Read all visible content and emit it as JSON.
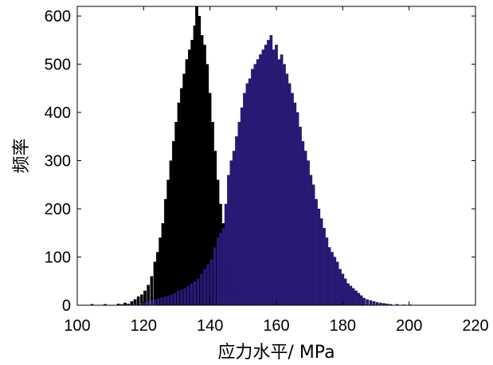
{
  "chart_data": {
    "type": "bar",
    "subtype": "overlapping-histogram",
    "title": "",
    "xlabel": "应力水平/ MPa",
    "ylabel": "频率",
    "xlim": [
      100,
      220
    ],
    "ylim": [
      0,
      620
    ],
    "xticks": [
      100,
      120,
      140,
      160,
      180,
      200,
      220
    ],
    "yticks": [
      0,
      100,
      200,
      300,
      400,
      500,
      600
    ],
    "bin_width": 0.8,
    "grid": false,
    "legend": "none",
    "series": [
      {
        "color": "#000000",
        "bins": [
          [
            104,
            2
          ],
          [
            108,
            2
          ],
          [
            112,
            3
          ],
          [
            114,
            5
          ],
          [
            116,
            8
          ],
          [
            117,
            12
          ],
          [
            118,
            18
          ],
          [
            119,
            22
          ],
          [
            120,
            30
          ],
          [
            121,
            42
          ],
          [
            122,
            60
          ],
          [
            123,
            90
          ],
          [
            123.8,
            110
          ],
          [
            124.6,
            140
          ],
          [
            125.4,
            170
          ],
          [
            126.2,
            220
          ],
          [
            127,
            260
          ],
          [
            127.8,
            300
          ],
          [
            128.6,
            340
          ],
          [
            129.4,
            380
          ],
          [
            130.2,
            420
          ],
          [
            131,
            450
          ],
          [
            131.8,
            480
          ],
          [
            132.6,
            510
          ],
          [
            133.4,
            530
          ],
          [
            134.2,
            550
          ],
          [
            135,
            580
          ],
          [
            135.6,
            620
          ],
          [
            136.4,
            600
          ],
          [
            137.2,
            560
          ],
          [
            138,
            540
          ],
          [
            138.8,
            500
          ],
          [
            139.6,
            440
          ],
          [
            140.4,
            380
          ],
          [
            141.2,
            320
          ],
          [
            142,
            260
          ],
          [
            142.8,
            210
          ],
          [
            143.6,
            170
          ],
          [
            144.4,
            130
          ],
          [
            145.2,
            90
          ],
          [
            146,
            70
          ],
          [
            146.8,
            55
          ],
          [
            147.6,
            40
          ],
          [
            148.4,
            30
          ],
          [
            149.2,
            20
          ],
          [
            150,
            12
          ],
          [
            151,
            8
          ],
          [
            152,
            5
          ],
          [
            154,
            3
          ],
          [
            156,
            2
          ]
        ]
      },
      {
        "color": "#2a1a7a",
        "bins": [
          [
            113,
            2
          ],
          [
            115,
            3
          ],
          [
            117,
            4
          ],
          [
            119,
            5
          ],
          [
            120,
            6
          ],
          [
            121,
            8
          ],
          [
            122,
            10
          ],
          [
            123,
            12
          ],
          [
            124,
            14
          ],
          [
            125,
            16
          ],
          [
            126,
            18
          ],
          [
            127,
            20
          ],
          [
            128,
            22
          ],
          [
            129,
            25
          ],
          [
            130,
            30
          ],
          [
            131,
            32
          ],
          [
            132,
            35
          ],
          [
            133,
            40
          ],
          [
            134,
            45
          ],
          [
            135,
            50
          ],
          [
            136,
            55
          ],
          [
            137,
            65
          ],
          [
            138,
            75
          ],
          [
            139,
            85
          ],
          [
            140,
            95
          ],
          [
            141,
            120
          ],
          [
            142,
            140
          ],
          [
            142.8,
            150
          ],
          [
            143.6,
            160
          ],
          [
            144.4,
            210
          ],
          [
            145.2,
            270
          ],
          [
            146,
            300
          ],
          [
            146.8,
            320
          ],
          [
            147.6,
            350
          ],
          [
            148.4,
            380
          ],
          [
            149.2,
            410
          ],
          [
            150,
            440
          ],
          [
            150.8,
            460
          ],
          [
            151.6,
            470
          ],
          [
            152.4,
            490
          ],
          [
            153.2,
            500
          ],
          [
            154,
            510
          ],
          [
            154.8,
            520
          ],
          [
            155.6,
            530
          ],
          [
            156.4,
            540
          ],
          [
            157.2,
            550
          ],
          [
            158,
            560
          ],
          [
            158.8,
            530
          ],
          [
            159.6,
            540
          ],
          [
            160.4,
            510
          ],
          [
            161.2,
            520
          ],
          [
            162,
            500
          ],
          [
            162.8,
            480
          ],
          [
            163.6,
            460
          ],
          [
            164.4,
            440
          ],
          [
            165.2,
            420
          ],
          [
            166,
            400
          ],
          [
            166.8,
            370
          ],
          [
            167.6,
            340
          ],
          [
            168.4,
            320
          ],
          [
            169.2,
            300
          ],
          [
            170,
            270
          ],
          [
            170.8,
            250
          ],
          [
            171.6,
            220
          ],
          [
            172.4,
            200
          ],
          [
            173.2,
            180
          ],
          [
            174,
            160
          ],
          [
            174.8,
            140
          ],
          [
            175.6,
            120
          ],
          [
            176.4,
            110
          ],
          [
            177.2,
            100
          ],
          [
            178,
            90
          ],
          [
            178.8,
            75
          ],
          [
            179.6,
            65
          ],
          [
            180.4,
            55
          ],
          [
            181.2,
            45
          ],
          [
            182,
            40
          ],
          [
            182.8,
            35
          ],
          [
            183.6,
            30
          ],
          [
            184.4,
            25
          ],
          [
            185.2,
            20
          ],
          [
            186,
            15
          ],
          [
            187,
            12
          ],
          [
            188,
            10
          ],
          [
            189,
            8
          ],
          [
            190,
            6
          ],
          [
            191,
            5
          ],
          [
            192,
            4
          ],
          [
            193,
            3
          ],
          [
            194,
            2
          ],
          [
            196,
            2
          ],
          [
            198,
            1
          ],
          [
            200,
            1
          ]
        ]
      }
    ]
  }
}
